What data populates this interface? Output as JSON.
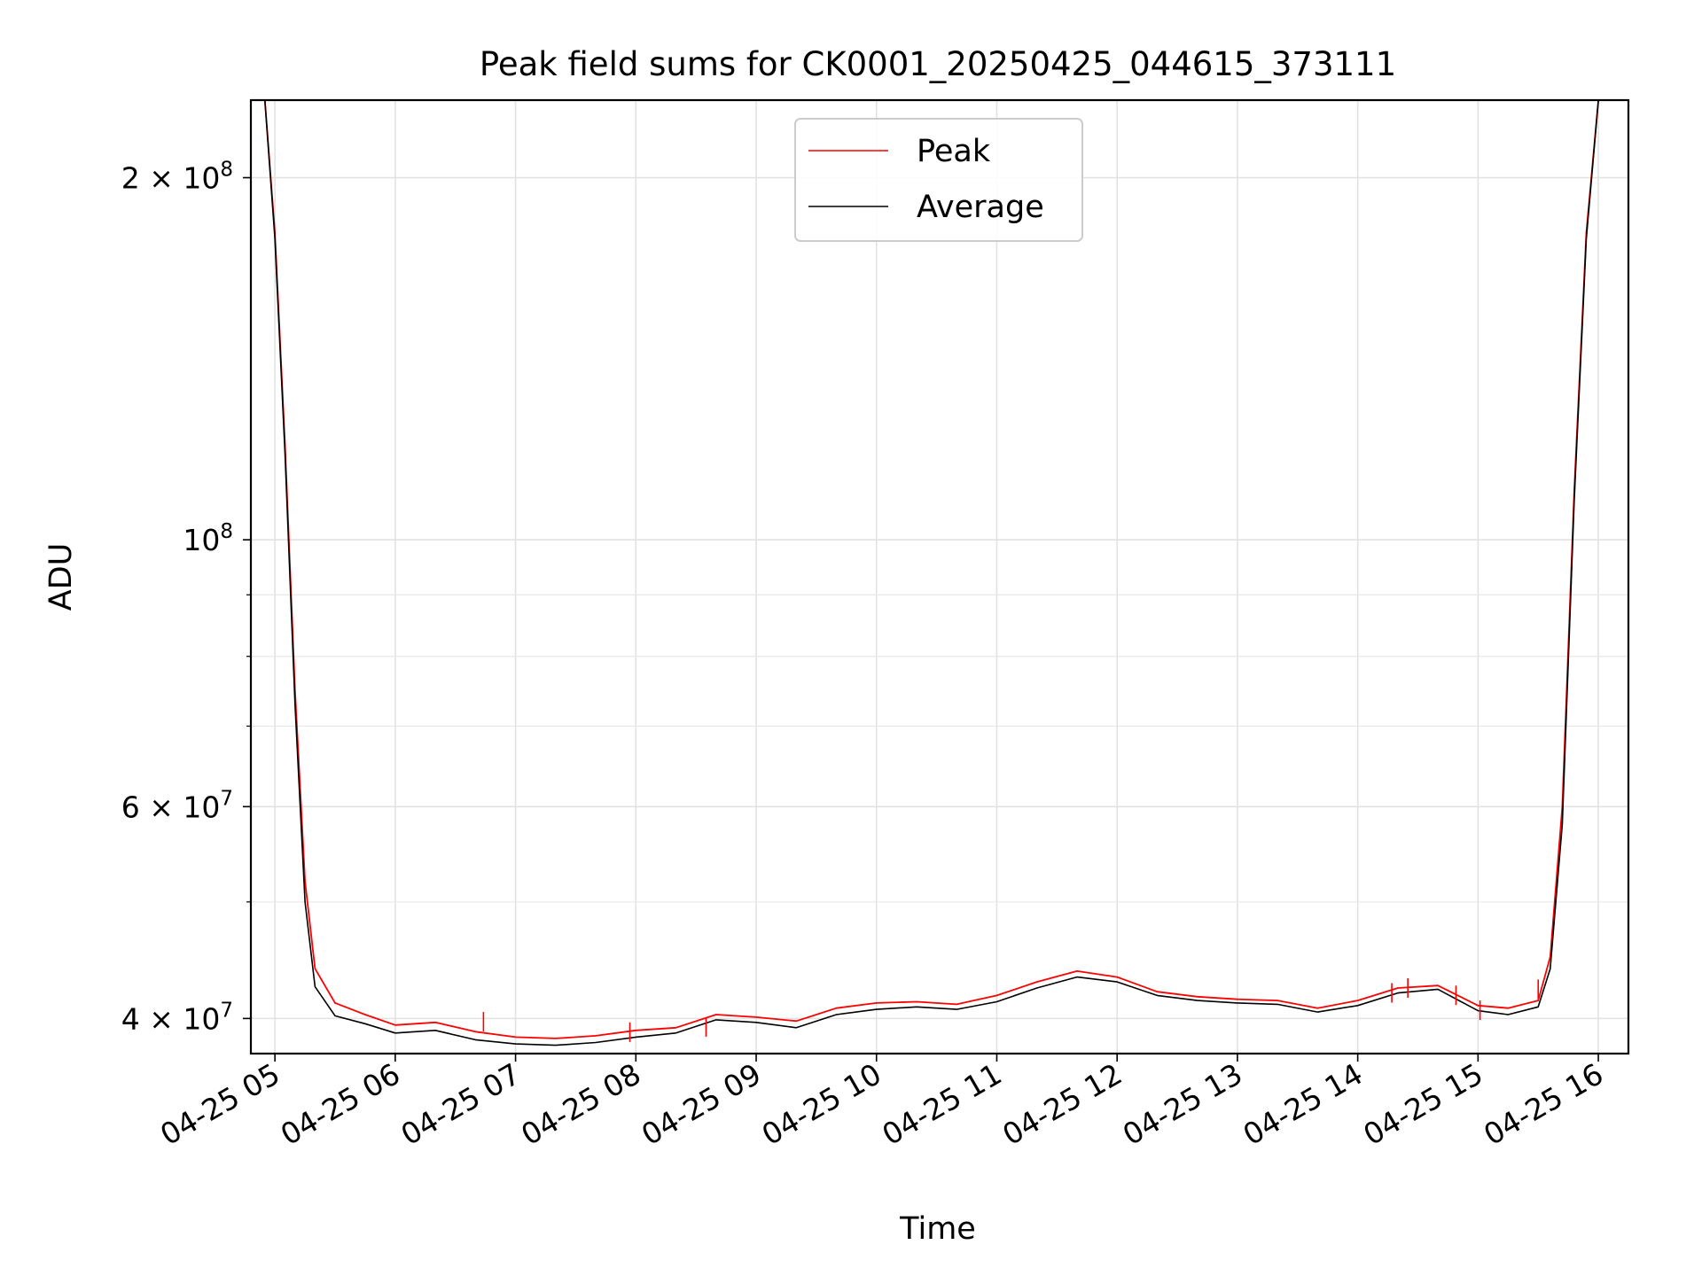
{
  "chart_data": {
    "type": "line",
    "title": "Peak field sums for CK0001_20250425_044615_373111",
    "xlabel": "Time",
    "ylabel": "ADU",
    "yscale": "log",
    "xlim": [
      "2025-04-25 04:48",
      "2025-04-25 16:15"
    ],
    "ylim": [
      37400000,
      232000000
    ],
    "grid": true,
    "legend_position": "top-center",
    "x_ticks": [
      {
        "t": "2025-04-25 05:00",
        "label": "04-25 05"
      },
      {
        "t": "2025-04-25 06:00",
        "label": "04-25 06"
      },
      {
        "t": "2025-04-25 07:00",
        "label": "04-25 07"
      },
      {
        "t": "2025-04-25 08:00",
        "label": "04-25 08"
      },
      {
        "t": "2025-04-25 09:00",
        "label": "04-25 09"
      },
      {
        "t": "2025-04-25 10:00",
        "label": "04-25 10"
      },
      {
        "t": "2025-04-25 11:00",
        "label": "04-25 11"
      },
      {
        "t": "2025-04-25 12:00",
        "label": "04-25 12"
      },
      {
        "t": "2025-04-25 13:00",
        "label": "04-25 13"
      },
      {
        "t": "2025-04-25 14:00",
        "label": "04-25 14"
      },
      {
        "t": "2025-04-25 15:00",
        "label": "04-25 15"
      },
      {
        "t": "2025-04-25 16:00",
        "label": "04-25 16"
      }
    ],
    "y_major_ticks": [
      {
        "value": 40000000,
        "base": "4 × 10",
        "exp": "7"
      },
      {
        "value": 60000000,
        "base": "6 × 10",
        "exp": "7"
      },
      {
        "value": 100000000,
        "base": "10",
        "exp": "8"
      },
      {
        "value": 200000000,
        "base": "2 × 10",
        "exp": "8"
      }
    ],
    "y_minor_ticks": [
      50000000,
      70000000,
      80000000,
      90000000
    ],
    "series": [
      {
        "name": "Peak",
        "color": "#ff0000",
        "x": [
          "2025-04-25 04:48",
          "2025-04-25 04:55",
          "2025-04-25 05:00",
          "2025-04-25 05:05",
          "2025-04-25 05:10",
          "2025-04-25 05:15",
          "2025-04-25 05:20",
          "2025-04-25 05:30",
          "2025-04-25 05:45",
          "2025-04-25 06:00",
          "2025-04-25 06:20",
          "2025-04-25 06:40",
          "2025-04-25 07:00",
          "2025-04-25 07:20",
          "2025-04-25 07:40",
          "2025-04-25 08:00",
          "2025-04-25 08:20",
          "2025-04-25 08:40",
          "2025-04-25 09:00",
          "2025-04-25 09:20",
          "2025-04-25 09:40",
          "2025-04-25 10:00",
          "2025-04-25 10:20",
          "2025-04-25 10:40",
          "2025-04-25 11:00",
          "2025-04-25 11:20",
          "2025-04-25 11:40",
          "2025-04-25 12:00",
          "2025-04-25 12:20",
          "2025-04-25 12:40",
          "2025-04-25 13:00",
          "2025-04-25 13:20",
          "2025-04-25 13:40",
          "2025-04-25 14:00",
          "2025-04-25 14:20",
          "2025-04-25 14:40",
          "2025-04-25 15:00",
          "2025-04-25 15:15",
          "2025-04-25 15:30",
          "2025-04-25 15:36",
          "2025-04-25 15:42",
          "2025-04-25 15:48",
          "2025-04-25 15:54",
          "2025-04-25 16:00"
        ],
        "y": [
          232000000,
          232000000,
          180000000,
          120000000,
          75000000,
          52000000,
          44000000,
          41200000,
          40300000,
          39500000,
          39700000,
          39000000,
          38600000,
          38500000,
          38700000,
          39100000,
          39300000,
          40300000,
          40100000,
          39800000,
          40800000,
          41200000,
          41300000,
          41100000,
          41800000,
          42900000,
          43800000,
          43300000,
          42100000,
          41700000,
          41500000,
          41400000,
          40800000,
          41400000,
          42400000,
          42600000,
          41000000,
          40800000,
          41400000,
          45000000,
          60000000,
          110000000,
          180000000,
          232000000
        ]
      },
      {
        "name": "Average",
        "color": "#000000",
        "x": [
          "2025-04-25 04:48",
          "2025-04-25 04:55",
          "2025-04-25 05:00",
          "2025-04-25 05:05",
          "2025-04-25 05:10",
          "2025-04-25 05:15",
          "2025-04-25 05:20",
          "2025-04-25 05:30",
          "2025-04-25 05:45",
          "2025-04-25 06:00",
          "2025-04-25 06:20",
          "2025-04-25 06:40",
          "2025-04-25 07:00",
          "2025-04-25 07:20",
          "2025-04-25 07:40",
          "2025-04-25 08:00",
          "2025-04-25 08:20",
          "2025-04-25 08:40",
          "2025-04-25 09:00",
          "2025-04-25 09:20",
          "2025-04-25 09:40",
          "2025-04-25 10:00",
          "2025-04-25 10:20",
          "2025-04-25 10:40",
          "2025-04-25 11:00",
          "2025-04-25 11:20",
          "2025-04-25 11:40",
          "2025-04-25 12:00",
          "2025-04-25 12:20",
          "2025-04-25 12:40",
          "2025-04-25 13:00",
          "2025-04-25 13:20",
          "2025-04-25 13:40",
          "2025-04-25 14:00",
          "2025-04-25 14:20",
          "2025-04-25 14:40",
          "2025-04-25 15:00",
          "2025-04-25 15:15",
          "2025-04-25 15:30",
          "2025-04-25 15:36",
          "2025-04-25 15:42",
          "2025-04-25 15:48",
          "2025-04-25 15:54",
          "2025-04-25 16:00"
        ],
        "y": [
          232000000,
          232000000,
          178000000,
          118000000,
          73000000,
          50000000,
          42500000,
          40200000,
          39600000,
          38900000,
          39100000,
          38400000,
          38100000,
          38000000,
          38200000,
          38600000,
          38900000,
          39900000,
          39700000,
          39300000,
          40300000,
          40700000,
          40900000,
          40700000,
          41300000,
          42400000,
          43300000,
          42900000,
          41800000,
          41400000,
          41200000,
          41100000,
          40500000,
          41000000,
          42000000,
          42300000,
          40600000,
          40300000,
          40900000,
          44000000,
          58000000,
          108000000,
          178000000,
          232000000
        ]
      }
    ],
    "peak_spikes": [
      {
        "t": "2025-04-25 06:44",
        "y": 40500000
      },
      {
        "t": "2025-04-25 07:57",
        "y": 39700000
      },
      {
        "t": "2025-04-25 08:35",
        "y": 40100000
      },
      {
        "t": "2025-04-25 14:17",
        "y": 42800000
      },
      {
        "t": "2025-04-25 14:25",
        "y": 43200000
      },
      {
        "t": "2025-04-25 14:49",
        "y": 42600000
      },
      {
        "t": "2025-04-25 15:01",
        "y": 41400000
      },
      {
        "t": "2025-04-25 15:30",
        "y": 43100000
      }
    ]
  }
}
